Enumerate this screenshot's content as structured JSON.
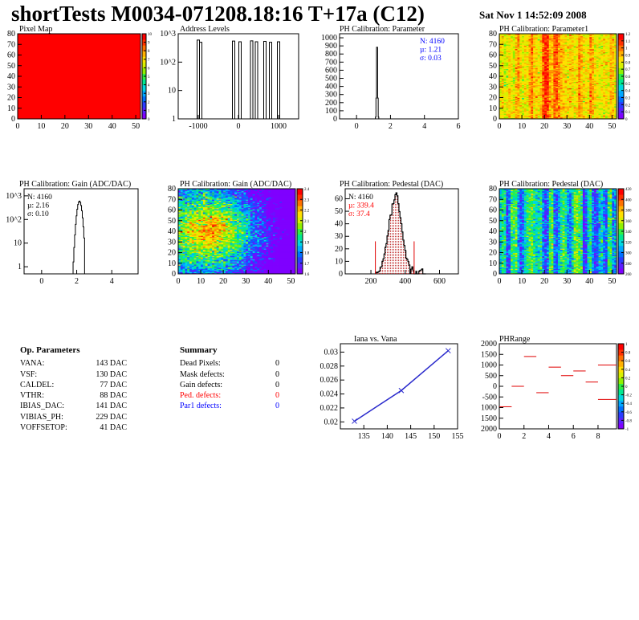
{
  "header": {
    "title": "shortTests M0034-071208.18:16 T+17a (C12)",
    "date": "Sat Nov  1 14:52:09 2008"
  },
  "colors": {
    "blue_text": "#0000ff",
    "red_text": "#ff0000",
    "line_blue": "#2a2acc",
    "red_seg": "#e00000"
  },
  "chart_data": [
    {
      "id": "pixel-map",
      "type": "heatmap",
      "title": "Pixel Map",
      "xlim": [
        0,
        52
      ],
      "ylim": [
        0,
        80
      ],
      "xticks": [
        0,
        10,
        20,
        30,
        40,
        50
      ],
      "yticks": [
        0,
        10,
        20,
        30,
        40,
        50,
        60,
        70,
        80
      ],
      "palette_ticks": [
        0,
        1,
        2,
        3,
        4,
        5,
        6,
        7,
        8,
        9,
        10
      ],
      "value": 10,
      "fill": "#ff0000"
    },
    {
      "id": "address-levels",
      "type": "bar",
      "title": "Address Levels",
      "xlim": [
        -1500,
        1500
      ],
      "ylog": true,
      "ylim": [
        1,
        1000
      ],
      "xticks": [
        -1000,
        0,
        1000
      ],
      "yticks": [
        "1",
        "10",
        "10^2",
        "10^3"
      ],
      "peaks": [
        {
          "x": -1000,
          "y": 600
        },
        {
          "x": -1000,
          "y": 500
        },
        {
          "x": -120,
          "y": 550
        },
        {
          "x": 40,
          "y": 520
        },
        {
          "x": 330,
          "y": 560
        },
        {
          "x": 450,
          "y": 520
        },
        {
          "x": 660,
          "y": 540
        },
        {
          "x": 800,
          "y": 500
        },
        {
          "x": 1000,
          "y": 520
        }
      ]
    },
    {
      "id": "ph-param",
      "type": "bar",
      "title": "PH Calibration: Parameter",
      "xlim": [
        -1,
        6
      ],
      "ylim": [
        0,
        1050
      ],
      "xticks": [
        0,
        2,
        4,
        6
      ],
      "yticks": [
        0,
        100,
        200,
        300,
        400,
        500,
        600,
        700,
        800,
        900,
        1000
      ],
      "peak": {
        "mean": 1.21,
        "sigma": 0.03,
        "height": 1030
      },
      "stats": [
        "N: 4160",
        "µ: 1.21",
        "σ: 0.03"
      ]
    },
    {
      "id": "ph-param1-map",
      "type": "heatmap",
      "title": "PH Calibration: Parameter1",
      "xlim": [
        0,
        52
      ],
      "ylim": [
        0,
        80
      ],
      "xticks": [
        0,
        10,
        20,
        30,
        40,
        50
      ],
      "yticks": [
        0,
        10,
        20,
        30,
        40,
        50,
        60,
        70,
        80
      ],
      "palette_ticks": [
        0,
        0.1,
        0.2,
        0.3,
        0.4,
        0.5,
        0.6,
        0.7,
        0.8,
        0.9,
        1,
        1.1,
        1.2
      ],
      "column_levels": [
        0.8,
        0.82,
        0.75,
        0.78,
        0.85,
        0.8,
        0.76,
        0.9,
        0.95,
        0.82,
        0.78,
        0.84,
        0.8,
        0.92,
        0.98,
        0.85,
        0.86,
        0.82,
        0.88,
        1.05,
        1.1,
        1.08,
        0.92,
        0.88,
        1.02,
        1.0,
        0.95,
        0.9,
        0.86,
        0.84,
        0.82,
        0.88,
        0.84,
        0.8,
        0.86,
        0.96,
        0.9,
        0.82,
        0.84,
        0.8,
        0.95,
        0.9,
        0.84,
        0.82,
        0.78,
        0.8,
        0.84,
        0.8,
        0.78,
        0.9,
        0.88,
        0.8
      ],
      "zrange": [
        0,
        1.2
      ]
    },
    {
      "id": "ph-gain",
      "type": "bar",
      "title": "PH Calibration: Gain (ADC/DAC)",
      "xlim": [
        -1,
        5.5
      ],
      "ylog": true,
      "ylim": [
        0.5,
        2000
      ],
      "xticks": [
        0,
        2,
        4
      ],
      "yticks": [
        "1",
        "10",
        "10^2",
        "10^3"
      ],
      "peak": {
        "mean": 2.16,
        "sigma": 0.1,
        "height": 600
      },
      "stats": [
        "N: 4160",
        "µ: 2.16",
        "σ: 0.10"
      ]
    },
    {
      "id": "ph-gain-map",
      "type": "heatmap",
      "title": "PH Calibration: Gain (ADC/DAC)",
      "xlim": [
        0,
        52
      ],
      "ylim": [
        0,
        80
      ],
      "xticks": [
        0,
        10,
        20,
        30,
        40,
        50
      ],
      "yticks": [
        0,
        10,
        20,
        30,
        40,
        50,
        60,
        70,
        80
      ],
      "palette_ticks": [
        1.6,
        1.7,
        1.8,
        1.9,
        2,
        2.1,
        2.2,
        2.3,
        2.4
      ],
      "zrange": [
        1.6,
        2.4
      ],
      "hot_center": [
        15,
        40
      ]
    },
    {
      "id": "ph-pedestal",
      "type": "bar",
      "title": "PH Calibration: Pedestal (DAC)",
      "xlim": [
        50,
        710
      ],
      "ylim": [
        0,
        68
      ],
      "xticks": [
        200,
        400,
        600
      ],
      "yticks": [
        0,
        10,
        20,
        30,
        40,
        50,
        60
      ],
      "peak": {
        "mean": 339.4,
        "sigma": 37.4,
        "height": 62
      },
      "cut_lines": [
        226,
        452
      ],
      "cut_height": 26,
      "stats": [
        "N: 4160",
        "µ: 339.4",
        "σ: 37.4"
      ]
    },
    {
      "id": "ph-pedestal-map",
      "type": "heatmap",
      "title": "PH Calibration: Pedestal (DAC)",
      "xlim": [
        0,
        52
      ],
      "ylim": [
        0,
        80
      ],
      "xticks": [
        0,
        10,
        20,
        30,
        40,
        50
      ],
      "yticks": [
        0,
        10,
        20,
        30,
        40,
        50,
        60,
        70,
        80
      ],
      "palette_ticks": [
        260,
        280,
        300,
        320,
        340,
        360,
        380,
        400,
        420
      ],
      "zrange": [
        260,
        420
      ],
      "column_levels": [
        320,
        330,
        325,
        290,
        300,
        335,
        330,
        340,
        310,
        290,
        300,
        320,
        335,
        340,
        345,
        330,
        320,
        325,
        330,
        300,
        285,
        295,
        335,
        340,
        300,
        290,
        310,
        330,
        340,
        330,
        310,
        300,
        320,
        345,
        350,
        340,
        330,
        280,
        290,
        320,
        330,
        300,
        285,
        295,
        310,
        320,
        300,
        290,
        330,
        340,
        300,
        310
      ]
    },
    {
      "id": "iana-vana",
      "type": "line",
      "title": "Iana vs. Vana",
      "xlim": [
        130,
        155
      ],
      "ylim": [
        0.019,
        0.0312
      ],
      "xticks": [
        135,
        140,
        145,
        150,
        155
      ],
      "yticks": [
        "0.02",
        "0.022",
        "0.024",
        "0.026",
        "0.028",
        "0.03"
      ],
      "x": [
        133,
        143,
        153
      ],
      "y": [
        0.0201,
        0.0245,
        0.0302
      ]
    },
    {
      "id": "ph-range",
      "type": "bar",
      "title": "PHRange",
      "xlim": [
        0,
        9.5
      ],
      "ylim": [
        -2000,
        2000
      ],
      "xticks": [
        0,
        2,
        4,
        6,
        8
      ],
      "yticks": [
        "2000",
        "1500",
        "1000",
        "500",
        "0",
        "-500",
        "1000",
        "1500",
        "2000"
      ],
      "palette_ticks": [
        -1,
        -0.8,
        -0.6,
        -0.4,
        -0.2,
        0,
        0.2,
        0.4,
        0.6,
        0.8,
        1
      ],
      "segments": [
        {
          "x0": 0,
          "x1": 1,
          "y": -960
        },
        {
          "x0": 1,
          "x1": 2,
          "y": 0
        },
        {
          "x0": 2,
          "x1": 3,
          "y": 1400
        },
        {
          "x0": 3,
          "x1": 4,
          "y": -300
        },
        {
          "x0": 4,
          "x1": 5,
          "y": 900
        },
        {
          "x0": 5,
          "x1": 6,
          "y": 500
        },
        {
          "x0": 6,
          "x1": 7,
          "y": 720
        },
        {
          "x0": 7,
          "x1": 8,
          "y": 200
        },
        {
          "x0": 8,
          "x1": 9.5,
          "y": 1000
        },
        {
          "x0": 8,
          "x1": 9.5,
          "y": -620
        }
      ]
    }
  ],
  "op_params": {
    "title": "Op. Parameters",
    "rows": [
      {
        "name": "VANA:",
        "value": "143 DAC"
      },
      {
        "name": "VSF:",
        "value": "130 DAC"
      },
      {
        "name": "CALDEL:",
        "value": "77 DAC"
      },
      {
        "name": "VTHR:",
        "value": "88 DAC"
      },
      {
        "name": "IBIAS_DAC:",
        "value": "141 DAC"
      },
      {
        "name": "VIBIAS_PH:",
        "value": "229 DAC"
      },
      {
        "name": "VOFFSETOP:",
        "value": "41 DAC"
      }
    ]
  },
  "summary": {
    "title": "Summary",
    "rows": [
      {
        "name": "Dead Pixels:",
        "value": "0",
        "color": "#000000"
      },
      {
        "name": "Mask defects:",
        "value": "0",
        "color": "#000000"
      },
      {
        "name": "Gain defects:",
        "value": "0",
        "color": "#000000"
      },
      {
        "name": "Ped. defects:",
        "value": "0",
        "color": "#ff0000"
      },
      {
        "name": "Par1 defects:",
        "value": "0",
        "color": "#0000ff"
      }
    ]
  }
}
